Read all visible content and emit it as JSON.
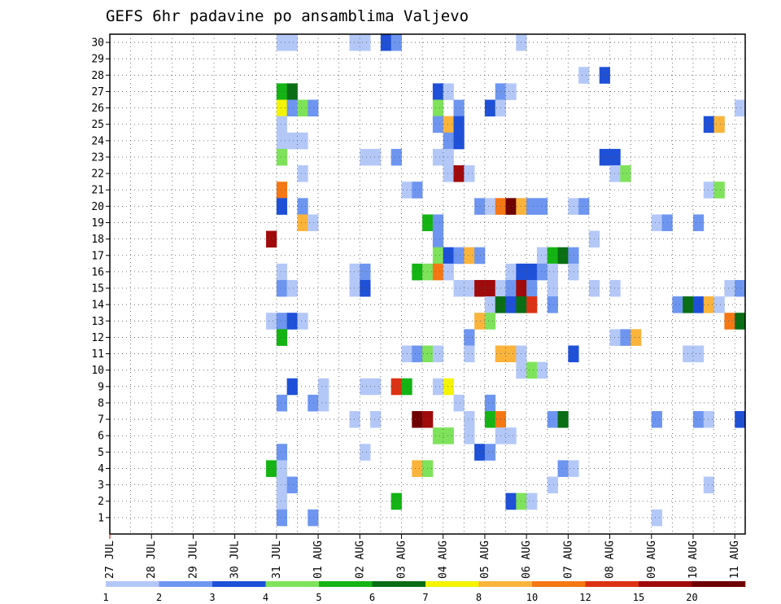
{
  "chart_data": {
    "type": "heatmap",
    "title": "GEFS 6hr padavine po ansamblima Valjevo",
    "xlabel": "",
    "ylabel": "",
    "x_ticks": [
      "27 JUL",
      "28 JUL",
      "29 JUL",
      "30 JUL",
      "31 JUL",
      "01 AUG",
      "02 AUG",
      "03 AUG",
      "04 AUG",
      "05 AUG",
      "06 AUG",
      "07 AUG",
      "08 AUG",
      "09 AUG",
      "10 AUG",
      "11 AUG"
    ],
    "y_ticks": [
      "1",
      "2",
      "3",
      "4",
      "5",
      "6",
      "7",
      "8",
      "9",
      "10",
      "11",
      "12",
      "13",
      "14",
      "15",
      "16",
      "17",
      "18",
      "19",
      "20",
      "21",
      "22",
      "23",
      "24",
      "25",
      "26",
      "27",
      "28",
      "29",
      "30"
    ],
    "x_unit": "6-hour step from 27 JUL 00Z",
    "y_unit": "ensemble member",
    "grid": true,
    "colorbar": {
      "ticks": [
        "1",
        "2",
        "3",
        "4",
        "5",
        "6",
        "7",
        "8",
        "10",
        "12",
        "15",
        "20"
      ],
      "colors": [
        "#b4c8f8",
        "#6e96f0",
        "#1e50d8",
        "#7ee35a",
        "#14b414",
        "#0a6e14",
        "#f4f400",
        "#fab43c",
        "#f57814",
        "#dc3214",
        "#a00a0a",
        "#6e0000"
      ]
    },
    "cells": [
      [
        16,
        30,
        1
      ],
      [
        17,
        30,
        1
      ],
      [
        23,
        30,
        1
      ],
      [
        24,
        30,
        1
      ],
      [
        26,
        30,
        3
      ],
      [
        27,
        30,
        2
      ],
      [
        39,
        30,
        1
      ],
      [
        45,
        28,
        1
      ],
      [
        47,
        28,
        3
      ],
      [
        16,
        27,
        5
      ],
      [
        17,
        27,
        6
      ],
      [
        31,
        27,
        3
      ],
      [
        32,
        27,
        1
      ],
      [
        37,
        27,
        2
      ],
      [
        38,
        27,
        1
      ],
      [
        16,
        26,
        7
      ],
      [
        17,
        26,
        2
      ],
      [
        18,
        26,
        4
      ],
      [
        19,
        26,
        2
      ],
      [
        31,
        26,
        4
      ],
      [
        33,
        26,
        2
      ],
      [
        36,
        26,
        3
      ],
      [
        37,
        26,
        1
      ],
      [
        60,
        26,
        1
      ],
      [
        16,
        25,
        1
      ],
      [
        31,
        25,
        2
      ],
      [
        32,
        25,
        8
      ],
      [
        33,
        25,
        3
      ],
      [
        57,
        25,
        3
      ],
      [
        58,
        25,
        8
      ],
      [
        16,
        24,
        1
      ],
      [
        17,
        24,
        1
      ],
      [
        18,
        24,
        1
      ],
      [
        32,
        24,
        2
      ],
      [
        33,
        24,
        3
      ],
      [
        16,
        23,
        4
      ],
      [
        24,
        23,
        1
      ],
      [
        25,
        23,
        1
      ],
      [
        27,
        23,
        2
      ],
      [
        31,
        23,
        1
      ],
      [
        32,
        23,
        1
      ],
      [
        47,
        23,
        3
      ],
      [
        48,
        23,
        3
      ],
      [
        18,
        22,
        1
      ],
      [
        32,
        22,
        1
      ],
      [
        33,
        22,
        11
      ],
      [
        34,
        22,
        1
      ],
      [
        48,
        22,
        1
      ],
      [
        49,
        22,
        4
      ],
      [
        16,
        21,
        9
      ],
      [
        28,
        21,
        1
      ],
      [
        29,
        21,
        2
      ],
      [
        57,
        21,
        1
      ],
      [
        58,
        21,
        4
      ],
      [
        16,
        20,
        3
      ],
      [
        18,
        20,
        2
      ],
      [
        35,
        20,
        2
      ],
      [
        36,
        20,
        1
      ],
      [
        37,
        20,
        9
      ],
      [
        38,
        20,
        12
      ],
      [
        39,
        20,
        8
      ],
      [
        40,
        20,
        2
      ],
      [
        41,
        20,
        2
      ],
      [
        44,
        20,
        1
      ],
      [
        45,
        20,
        2
      ],
      [
        18,
        19,
        8
      ],
      [
        19,
        19,
        1
      ],
      [
        30,
        19,
        5
      ],
      [
        31,
        19,
        2
      ],
      [
        52,
        19,
        1
      ],
      [
        53,
        19,
        2
      ],
      [
        56,
        19,
        2
      ],
      [
        15,
        18,
        11
      ],
      [
        31,
        18,
        2
      ],
      [
        46,
        18,
        1
      ],
      [
        31,
        17,
        4
      ],
      [
        32,
        17,
        3
      ],
      [
        33,
        17,
        2
      ],
      [
        34,
        17,
        8
      ],
      [
        35,
        17,
        2
      ],
      [
        41,
        17,
        1
      ],
      [
        42,
        17,
        5
      ],
      [
        43,
        17,
        6
      ],
      [
        44,
        17,
        2
      ],
      [
        16,
        16,
        1
      ],
      [
        23,
        16,
        1
      ],
      [
        24,
        16,
        2
      ],
      [
        29,
        16,
        5
      ],
      [
        30,
        16,
        4
      ],
      [
        31,
        16,
        9
      ],
      [
        32,
        16,
        1
      ],
      [
        38,
        16,
        1
      ],
      [
        39,
        16,
        3
      ],
      [
        40,
        16,
        3
      ],
      [
        41,
        16,
        2
      ],
      [
        42,
        16,
        1
      ],
      [
        44,
        16,
        1
      ],
      [
        16,
        15,
        2
      ],
      [
        17,
        15,
        1
      ],
      [
        23,
        15,
        1
      ],
      [
        24,
        15,
        3
      ],
      [
        33,
        15,
        1
      ],
      [
        34,
        15,
        1
      ],
      [
        35,
        15,
        11
      ],
      [
        36,
        15,
        11
      ],
      [
        37,
        15,
        1
      ],
      [
        38,
        15,
        2
      ],
      [
        39,
        15,
        11
      ],
      [
        40,
        15,
        2
      ],
      [
        42,
        15,
        1
      ],
      [
        46,
        15,
        1
      ],
      [
        48,
        15,
        1
      ],
      [
        59,
        15,
        1
      ],
      [
        60,
        15,
        2
      ],
      [
        36,
        14,
        1
      ],
      [
        37,
        14,
        6
      ],
      [
        38,
        14,
        3
      ],
      [
        39,
        14,
        6
      ],
      [
        40,
        14,
        10
      ],
      [
        42,
        14,
        2
      ],
      [
        54,
        14,
        2
      ],
      [
        55,
        14,
        6
      ],
      [
        56,
        14,
        3
      ],
      [
        57,
        14,
        8
      ],
      [
        58,
        14,
        1
      ],
      [
        15,
        13,
        1
      ],
      [
        16,
        13,
        2
      ],
      [
        17,
        13,
        3
      ],
      [
        18,
        13,
        1
      ],
      [
        35,
        13,
        8
      ],
      [
        36,
        13,
        4
      ],
      [
        59,
        13,
        9
      ],
      [
        60,
        13,
        6
      ],
      [
        16,
        12,
        5
      ],
      [
        34,
        12,
        2
      ],
      [
        48,
        12,
        1
      ],
      [
        49,
        12,
        2
      ],
      [
        50,
        12,
        8
      ],
      [
        28,
        11,
        1
      ],
      [
        29,
        11,
        2
      ],
      [
        30,
        11,
        4
      ],
      [
        31,
        11,
        1
      ],
      [
        34,
        11,
        1
      ],
      [
        37,
        11,
        8
      ],
      [
        38,
        11,
        8
      ],
      [
        39,
        11,
        1
      ],
      [
        44,
        11,
        3
      ],
      [
        55,
        11,
        1
      ],
      [
        56,
        11,
        1
      ],
      [
        39,
        10,
        1
      ],
      [
        40,
        10,
        4
      ],
      [
        41,
        10,
        1
      ],
      [
        17,
        9,
        3
      ],
      [
        20,
        9,
        1
      ],
      [
        24,
        9,
        1
      ],
      [
        25,
        9,
        1
      ],
      [
        27,
        9,
        10
      ],
      [
        28,
        9,
        5
      ],
      [
        31,
        9,
        1
      ],
      [
        32,
        9,
        7
      ],
      [
        16,
        8,
        2
      ],
      [
        19,
        8,
        2
      ],
      [
        20,
        8,
        1
      ],
      [
        33,
        8,
        1
      ],
      [
        36,
        8,
        2
      ],
      [
        23,
        7,
        1
      ],
      [
        25,
        7,
        1
      ],
      [
        29,
        7,
        12
      ],
      [
        30,
        7,
        11
      ],
      [
        34,
        7,
        1
      ],
      [
        36,
        7,
        5
      ],
      [
        37,
        7,
        9
      ],
      [
        42,
        7,
        2
      ],
      [
        43,
        7,
        6
      ],
      [
        52,
        7,
        2
      ],
      [
        56,
        7,
        2
      ],
      [
        57,
        7,
        1
      ],
      [
        60,
        7,
        3
      ],
      [
        31,
        6,
        4
      ],
      [
        32,
        6,
        4
      ],
      [
        34,
        6,
        1
      ],
      [
        37,
        6,
        1
      ],
      [
        38,
        6,
        1
      ],
      [
        16,
        5,
        2
      ],
      [
        24,
        5,
        1
      ],
      [
        35,
        5,
        3
      ],
      [
        36,
        5,
        2
      ],
      [
        15,
        4,
        5
      ],
      [
        16,
        4,
        1
      ],
      [
        29,
        4,
        8
      ],
      [
        30,
        4,
        4
      ],
      [
        43,
        4,
        2
      ],
      [
        44,
        4,
        1
      ],
      [
        16,
        3,
        1
      ],
      [
        17,
        3,
        2
      ],
      [
        42,
        3,
        1
      ],
      [
        57,
        3,
        1
      ],
      [
        16,
        2,
        1
      ],
      [
        27,
        2,
        5
      ],
      [
        38,
        2,
        3
      ],
      [
        39,
        2,
        4
      ],
      [
        40,
        2,
        1
      ],
      [
        16,
        1,
        2
      ],
      [
        19,
        1,
        2
      ],
      [
        52,
        1,
        1
      ]
    ]
  }
}
